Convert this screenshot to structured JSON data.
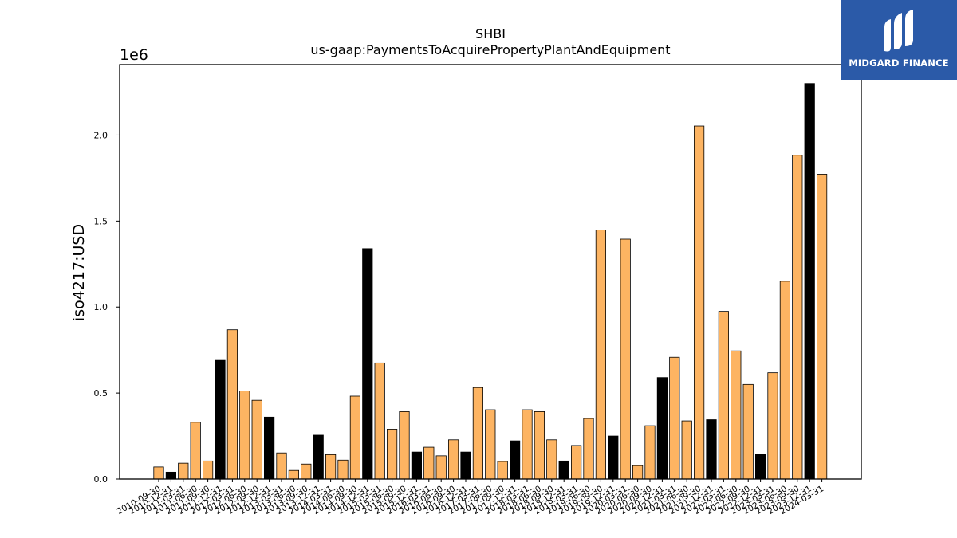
{
  "chart_data": {
    "type": "bar",
    "title": "SHBI",
    "subtitle": "us-gaap:PaymentsToAcquirePropertyPlantAndEquipment",
    "ylabel": "iso4217:USD",
    "xlabel": "",
    "y_offset_label": "1e6",
    "y_scale": 1000000,
    "ylim": [
      0,
      2410000
    ],
    "yticks": [
      0,
      500000,
      1000000,
      1500000,
      2000000
    ],
    "ytick_labels": [
      "0.0",
      "0.5",
      "1.0",
      "1.5",
      "2.0"
    ],
    "grid": false,
    "colors": {
      "quarterly": "#fdb462",
      "annual": "#000000",
      "edge": "#000000"
    },
    "categories": [
      "2010-09-30",
      "2010-12-31",
      "2011-03-31",
      "2011-06-30",
      "2011-09-30",
      "2011-12-31",
      "2012-03-31",
      "2012-06-30",
      "2012-09-30",
      "2012-12-31",
      "2013-03-31",
      "2013-06-30",
      "2013-09-30",
      "2013-12-31",
      "2014-03-31",
      "2014-06-30",
      "2014-09-30",
      "2014-12-31",
      "2015-03-31",
      "2015-06-30",
      "2015-09-30",
      "2015-12-31",
      "2016-03-31",
      "2016-06-30",
      "2016-09-30",
      "2016-12-31",
      "2017-03-31",
      "2017-06-30",
      "2017-09-30",
      "2017-12-31",
      "2018-03-31",
      "2018-06-30",
      "2018-09-30",
      "2018-12-31",
      "2019-03-31",
      "2019-06-30",
      "2019-09-30",
      "2019-12-31",
      "2020-03-31",
      "2020-06-30",
      "2020-09-30",
      "2020-12-31",
      "2021-03-31",
      "2021-06-30",
      "2021-09-30",
      "2021-12-31",
      "2022-03-31",
      "2022-06-30",
      "2022-09-30",
      "2022-12-31",
      "2023-03-31",
      "2023-06-30",
      "2023-09-30",
      "2023-12-31",
      "2024-03-31"
    ],
    "values": [
      70000,
      40000,
      92000,
      330000,
      105000,
      690000,
      868000,
      512000,
      458000,
      360000,
      152000,
      50000,
      87000,
      255000,
      142000,
      110000,
      482000,
      1340000,
      675000,
      290000,
      392000,
      157000,
      185000,
      135000,
      228000,
      157000,
      532000,
      403000,
      102000,
      222000,
      403000,
      392000,
      228000,
      105000,
      195000,
      352000,
      1448000,
      250000,
      1395000,
      78000,
      310000,
      590000,
      708000,
      338000,
      2053000,
      345000,
      975000,
      745000,
      550000,
      143000,
      618000,
      1150000,
      1883000,
      2300000,
      1773000
    ],
    "annual": [
      false,
      true,
      false,
      false,
      false,
      true,
      false,
      false,
      false,
      true,
      false,
      false,
      false,
      true,
      false,
      false,
      false,
      true,
      false,
      false,
      false,
      true,
      false,
      false,
      false,
      true,
      false,
      false,
      false,
      true,
      false,
      false,
      false,
      true,
      false,
      false,
      false,
      true,
      false,
      false,
      false,
      true,
      false,
      false,
      false,
      true,
      false,
      false,
      false,
      true,
      false,
      false,
      false,
      true,
      false
    ]
  },
  "logo": {
    "text": "MIDGARD FINANCE",
    "bg": "#2b5aa8",
    "icon": "midgard-logo-icon"
  }
}
